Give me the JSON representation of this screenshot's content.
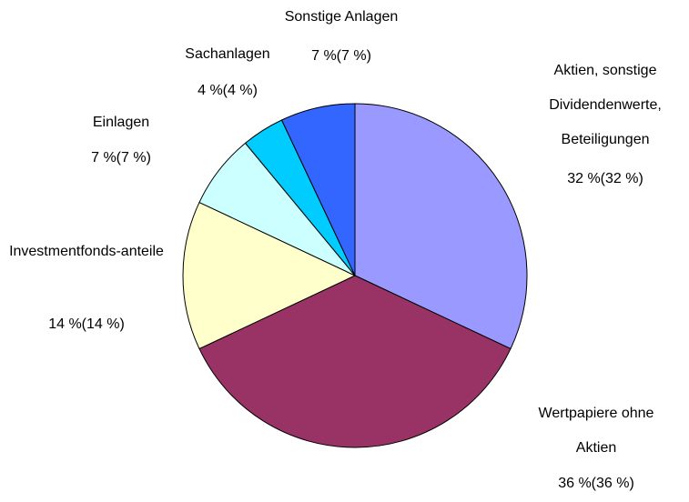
{
  "chart_data": {
    "type": "pie",
    "categories": [
      "Aktien, sonstige Dividendenwerte, Beteiligungen",
      "Wertpapiere ohne Aktien",
      "Investmentfonds-anteile",
      "Einlagen",
      "Sachanlagen",
      "Sonstige Anlagen"
    ],
    "values": [
      32,
      36,
      14,
      7,
      4,
      7
    ],
    "value_labels": [
      "32 %(32 %)",
      "36 %(36 %)",
      "14 %(14 %)",
      "7 %(7 %)",
      "4 %(4 %)",
      "7 %(7 %)"
    ],
    "colors": [
      "#9999ff",
      "#993366",
      "#ffffcc",
      "#ccffff",
      "#00ccff",
      "#3366ff"
    ]
  }
}
